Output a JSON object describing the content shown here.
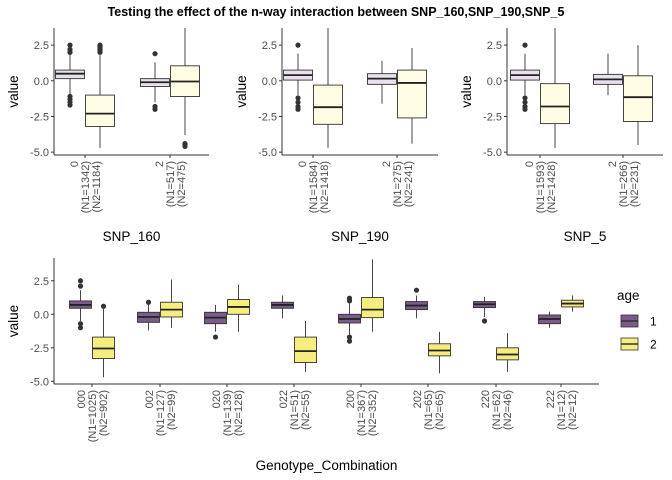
{
  "title": "Testing the effect of the n-way interaction between SNP_160,SNP_190,SNP_5",
  "colors": {
    "group1": "#e8e0ec",
    "group2": "#fffde3",
    "age1": "#7a5b8a",
    "age2": "#f5ee7e",
    "outline": "#333333",
    "axis": "#333333"
  },
  "legend": {
    "title": "age",
    "placement": "right",
    "entries": [
      {
        "label": "1",
        "color": "#7a5b8a"
      },
      {
        "label": "2",
        "color": "#f5ee7e"
      }
    ]
  },
  "chart_data": [
    {
      "type": "box",
      "xlabel": "SNP_160",
      "ylabel": "value",
      "ylim": [
        -5.2,
        3.7
      ],
      "yticks": [
        -5.0,
        -2.5,
        0.0,
        2.5
      ],
      "ytick_labels": [
        "-5.0",
        "-2.5",
        "0.0",
        "2.5"
      ],
      "categories": [
        {
          "label": [
            "0",
            "(N1=1342)",
            "(N2=1184)"
          ]
        },
        {
          "label": [
            "2",
            "(N1=517)",
            "(N2=475)"
          ]
        }
      ],
      "series": [
        {
          "boxes": [
            {
              "min": -1.0,
              "q1": 0.15,
              "median": 0.5,
              "q3": 0.75,
              "max": 1.9,
              "outliers": [
                2.0,
                2.2,
                2.5,
                -1.1,
                -1.3,
                -1.5,
                -1.7
              ]
            },
            {
              "min": -1.5,
              "q1": -0.4,
              "median": -0.1,
              "q3": 0.15,
              "max": 1.3,
              "outliers": [
                1.9,
                -1.8,
                -2.0
              ]
            }
          ]
        },
        {
          "boxes": [
            {
              "min": -4.7,
              "q1": -3.2,
              "median": -2.3,
              "q3": -1.0,
              "max": 1.8,
              "outliers": [
                2.0,
                2.1,
                2.2,
                2.3,
                2.4,
                2.5
              ]
            },
            {
              "min": -3.8,
              "q1": -1.1,
              "median": -0.05,
              "q3": 1.05,
              "max": 3.7,
              "outliers": [
                -4.4,
                -4.5,
                -4.6
              ]
            }
          ]
        }
      ]
    },
    {
      "type": "box",
      "xlabel": "SNP_190",
      "ylabel": "value",
      "ylim": [
        -5.2,
        3.7
      ],
      "yticks": [
        -5.0,
        -2.5,
        0.0,
        2.5
      ],
      "ytick_labels": [
        "-5.0",
        "-2.5",
        "0.0",
        "2.5"
      ],
      "categories": [
        {
          "label": [
            "0",
            "(N1=1584)",
            "(N2=1418)"
          ]
        },
        {
          "label": [
            "2",
            "(N1=275)",
            "(N2=241)"
          ]
        }
      ],
      "series": [
        {
          "boxes": [
            {
              "min": -1.0,
              "q1": 0.05,
              "median": 0.4,
              "q3": 0.75,
              "max": 1.9,
              "outliers": [
                2.5,
                -1.2,
                -1.5,
                -1.8,
                -2.0
              ]
            },
            {
              "min": -1.6,
              "q1": -0.25,
              "median": 0.15,
              "q3": 0.5,
              "max": 1.4,
              "outliers": []
            }
          ]
        },
        {
          "boxes": [
            {
              "min": -4.7,
              "q1": -3.05,
              "median": -1.85,
              "q3": -0.3,
              "max": 3.7,
              "outliers": []
            },
            {
              "min": -4.4,
              "q1": -2.6,
              "median": -0.15,
              "q3": 0.75,
              "max": 2.3,
              "outliers": []
            }
          ]
        }
      ]
    },
    {
      "type": "box",
      "xlabel": "SNP_5",
      "ylabel": "value",
      "ylim": [
        -5.2,
        3.7
      ],
      "yticks": [
        -5.0,
        -2.5,
        0.0,
        2.5
      ],
      "ytick_labels": [
        "-5.0",
        "-2.5",
        "0.0",
        "2.5"
      ],
      "categories": [
        {
          "label": [
            "0",
            "(N1=1593)",
            "(N2=1428)"
          ]
        },
        {
          "label": [
            "2",
            "(N1=266)",
            "(N2=231)"
          ]
        }
      ],
      "series": [
        {
          "boxes": [
            {
              "min": -1.0,
              "q1": 0.05,
              "median": 0.4,
              "q3": 0.75,
              "max": 1.9,
              "outliers": [
                2.5,
                -1.2,
                -1.5,
                -1.8,
                -2.0
              ]
            },
            {
              "min": -1.0,
              "q1": -0.25,
              "median": 0.1,
              "q3": 0.45,
              "max": 1.9,
              "outliers": []
            }
          ]
        },
        {
          "boxes": [
            {
              "min": -4.7,
              "q1": -3.0,
              "median": -1.8,
              "q3": -0.2,
              "max": 3.7,
              "outliers": []
            },
            {
              "min": -4.5,
              "q1": -2.85,
              "median": -1.15,
              "q3": 0.35,
              "max": 2.5,
              "outliers": []
            }
          ]
        }
      ]
    },
    {
      "type": "box",
      "xlabel": "Genotype_Combination",
      "ylabel": "value",
      "ylim": [
        -5.2,
        4.2
      ],
      "yticks": [
        -5.0,
        -2.5,
        0.0,
        2.5
      ],
      "ytick_labels": [
        "-5.0",
        "-2.5",
        "0.0",
        "2.5"
      ],
      "categories": [
        {
          "label": [
            "000",
            "(N1=1025)",
            "(N2=902)"
          ]
        },
        {
          "label": [
            "002",
            "(N1=127)",
            "(N2=99)"
          ]
        },
        {
          "label": [
            "020",
            "(N1=139)",
            "(N2=128)"
          ]
        },
        {
          "label": [
            "022",
            "(N1=51)",
            "(N2=55)"
          ]
        },
        {
          "label": [
            "200",
            "(N1=367)",
            "(N2=352)"
          ]
        },
        {
          "label": [
            "202",
            "(N1=65)",
            "(N2=65)"
          ]
        },
        {
          "label": [
            "220",
            "(N1=62)",
            "(N2=46)"
          ]
        },
        {
          "label": [
            "222",
            "(N1=12)",
            "(N2=12)"
          ]
        }
      ],
      "series": [
        {
          "name": "1",
          "boxes": [
            {
              "min": -0.5,
              "q1": 0.45,
              "median": 0.7,
              "q3": 1.0,
              "max": 1.8,
              "outliers": [
                2.1,
                2.5,
                -0.7,
                -1.0
              ]
            },
            {
              "min": -1.2,
              "q1": -0.6,
              "median": -0.2,
              "q3": 0.15,
              "max": 0.8,
              "outliers": [
                0.9
              ]
            },
            {
              "min": -1.3,
              "q1": -0.7,
              "median": -0.25,
              "q3": 0.15,
              "max": 0.7,
              "outliers": [
                -1.7
              ]
            },
            {
              "min": -0.3,
              "q1": 0.45,
              "median": 0.7,
              "q3": 0.9,
              "max": 1.4,
              "outliers": []
            },
            {
              "min": -1.5,
              "q1": -0.65,
              "median": -0.35,
              "q3": 0.0,
              "max": 0.8,
              "outliers": [
                1.0,
                1.2,
                -1.7,
                -2.0
              ]
            },
            {
              "min": -0.3,
              "q1": 0.35,
              "median": 0.65,
              "q3": 0.95,
              "max": 1.4,
              "outliers": [
                1.8
              ]
            },
            {
              "min": -0.2,
              "q1": 0.5,
              "median": 0.75,
              "q3": 0.95,
              "max": 1.3,
              "outliers": [
                -0.5
              ]
            },
            {
              "min": -1.0,
              "q1": -0.7,
              "median": -0.35,
              "q3": -0.05,
              "max": 0.2,
              "outliers": []
            }
          ]
        },
        {
          "name": "2",
          "boxes": [
            {
              "min": -4.7,
              "q1": -3.3,
              "median": -2.55,
              "q3": -1.7,
              "max": 0.4,
              "outliers": [
                0.6
              ]
            },
            {
              "min": -1.0,
              "q1": -0.2,
              "median": 0.35,
              "q3": 0.9,
              "max": 2.6,
              "outliers": []
            },
            {
              "min": -1.3,
              "q1": 0.0,
              "median": 0.55,
              "q3": 1.1,
              "max": 2.2,
              "outliers": []
            },
            {
              "min": -4.3,
              "q1": -3.6,
              "median": -2.75,
              "q3": -1.7,
              "max": -0.5,
              "outliers": []
            },
            {
              "min": -1.3,
              "q1": -0.25,
              "median": 0.35,
              "q3": 1.25,
              "max": 4.1,
              "outliers": []
            },
            {
              "min": -4.4,
              "q1": -3.1,
              "median": -2.7,
              "q3": -2.2,
              "max": -1.3,
              "outliers": []
            },
            {
              "min": -4.3,
              "q1": -3.4,
              "median": -3.0,
              "q3": -2.5,
              "max": -1.4,
              "outliers": []
            },
            {
              "min": 0.2,
              "q1": 0.55,
              "median": 0.8,
              "q3": 1.05,
              "max": 1.4,
              "outliers": []
            }
          ]
        }
      ]
    }
  ]
}
